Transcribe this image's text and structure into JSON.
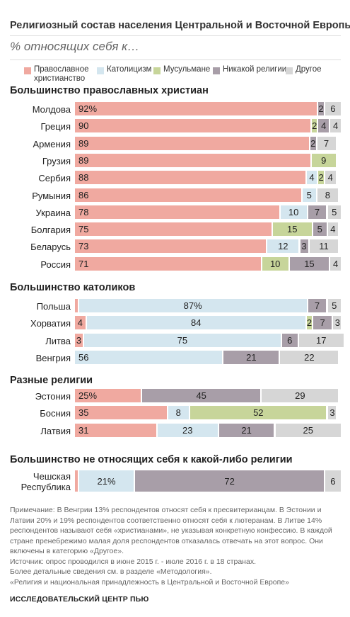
{
  "title": "Религиозный состав населения Центральной и Восточной Европы",
  "subtitle": "% относящих себя к…",
  "legend": [
    {
      "key": "orth",
      "lines": [
        "Православное",
        "христианство"
      ],
      "color": "#f0a9a0"
    },
    {
      "key": "cath",
      "lines": [
        "Католицизм"
      ],
      "color": "#d4e6ef"
    },
    {
      "key": "musl",
      "lines": [
        "Мусульмане"
      ],
      "color": "#c7d59a"
    },
    {
      "key": "none",
      "lines": [
        "Никакой религии"
      ],
      "color": "#a89ea8"
    },
    {
      "key": "other",
      "lines": [
        "Другое"
      ],
      "color": "#d6d6d6"
    }
  ],
  "chart_data": {
    "type": "bar",
    "orientation": "horizontal",
    "stacked": true,
    "scale_max": 100,
    "series": [
      "Православное христианство",
      "Католицизм",
      "Мусульмане",
      "Никакой религии",
      "Другое"
    ],
    "groups": [
      {
        "title": "Большинство православных христиан",
        "rows": [
          {
            "country": [
              "Молдова"
            ],
            "values": [
              92,
              0,
              0,
              2,
              6
            ],
            "labels": [
              "92%",
              "",
              "",
              "2",
              "6"
            ]
          },
          {
            "country": [
              "Греция"
            ],
            "values": [
              90,
              0,
              2,
              4,
              4
            ],
            "labels": [
              "90",
              "",
              "2",
              "4",
              "4"
            ]
          },
          {
            "country": [
              "Армения"
            ],
            "values": [
              89,
              0,
              0,
              2,
              7
            ],
            "labels": [
              "89",
              "",
              "",
              "2",
              "7"
            ]
          },
          {
            "country": [
              "Грузия"
            ],
            "values": [
              89,
              0,
              9,
              0,
              0
            ],
            "labels": [
              "89",
              "",
              "9",
              "",
              ""
            ]
          },
          {
            "country": [
              "Сербия"
            ],
            "values": [
              88,
              4,
              2,
              0,
              4
            ],
            "labels": [
              "88",
              "4",
              "2",
              "",
              "4"
            ]
          },
          {
            "country": [
              "Румыния"
            ],
            "values": [
              86,
              5,
              0,
              0,
              8
            ],
            "labels": [
              "86",
              "5",
              "",
              "",
              "8"
            ]
          },
          {
            "country": [
              "Украина"
            ],
            "values": [
              78,
              10,
              0,
              7,
              5
            ],
            "labels": [
              "78",
              "10",
              "",
              "7",
              "5"
            ]
          },
          {
            "country": [
              "Болгария"
            ],
            "values": [
              75,
              0,
              15,
              5,
              4
            ],
            "labels": [
              "75",
              "",
              "15",
              "5",
              "4"
            ]
          },
          {
            "country": [
              "Беларусь"
            ],
            "values": [
              73,
              12,
              0,
              3,
              11
            ],
            "labels": [
              "73",
              "12",
              "",
              "3",
              "11"
            ]
          },
          {
            "country": [
              "Россия"
            ],
            "values": [
              71,
              0,
              10,
              15,
              4
            ],
            "labels": [
              "71",
              "",
              "10",
              "15",
              "4"
            ]
          }
        ]
      },
      {
        "title": "Большинство католиков",
        "rows": [
          {
            "country": [
              "Польша"
            ],
            "values": [
              1,
              87,
              0,
              7,
              5
            ],
            "labels": [
              "",
              "87%",
              "",
              "7",
              "5"
            ]
          },
          {
            "country": [
              "Хорватия"
            ],
            "values": [
              4,
              84,
              2,
              7,
              3
            ],
            "labels": [
              "4",
              "84",
              "2",
              "7",
              "3"
            ]
          },
          {
            "country": [
              "Литва"
            ],
            "values": [
              3,
              75,
              0,
              6,
              17
            ],
            "labels": [
              "3",
              "75",
              "",
              "6",
              "17"
            ]
          },
          {
            "country": [
              "Венгрия"
            ],
            "values": [
              0,
              56,
              0,
              21,
              22
            ],
            "labels": [
              "",
              "56",
              "",
              "21",
              "22"
            ]
          }
        ]
      },
      {
        "title": "Разные религии",
        "rows": [
          {
            "country": [
              "Эстония"
            ],
            "values": [
              25,
              0,
              0,
              45,
              29
            ],
            "labels": [
              "25%",
              "",
              "",
              "45",
              "29"
            ]
          },
          {
            "country": [
              "Босния"
            ],
            "values": [
              35,
              8,
              52,
              0,
              3
            ],
            "labels": [
              "35",
              "8",
              "52",
              "",
              "3"
            ]
          },
          {
            "country": [
              "Латвия"
            ],
            "values": [
              31,
              23,
              0,
              21,
              25
            ],
            "labels": [
              "31",
              "23",
              "",
              "21",
              "25"
            ]
          }
        ]
      },
      {
        "title": "Большинство не относящих себя к какой-либо религии",
        "rows": [
          {
            "country": [
              "Чешская",
              "Республика"
            ],
            "values": [
              1,
              21,
              0,
              72,
              6
            ],
            "labels": [
              "",
              "21%",
              "",
              "72",
              "6"
            ]
          }
        ]
      }
    ]
  },
  "notes": [
    "Примечание: В Венгрии 13% респондентов относят себя к пресвитерианцам. В Эстонии и",
    "Латвии 20% и 19% респондентов соответственно относят себя к лютеранам. В Литве 14%",
    "респондентов называют себя «христианами», не указывая конкретную конфессию. В каждой",
    "стране пренебрежимо малая доля респондентов отказалась отвечать на этот вопрос. Они",
    "включены в категорию «Другое».",
    "Источник: опрос проводился в июне 2015 г. - июле 2016 г. в 18 странах.",
    "Более детальные сведения см. в разделе «Методология».",
    "«Религия и национальная принадлежность в Центральной и Восточной Европе»"
  ],
  "credit": "ИССЛЕДОВАТЕЛЬСКИЙ ЦЕНТР ПЬЮ"
}
